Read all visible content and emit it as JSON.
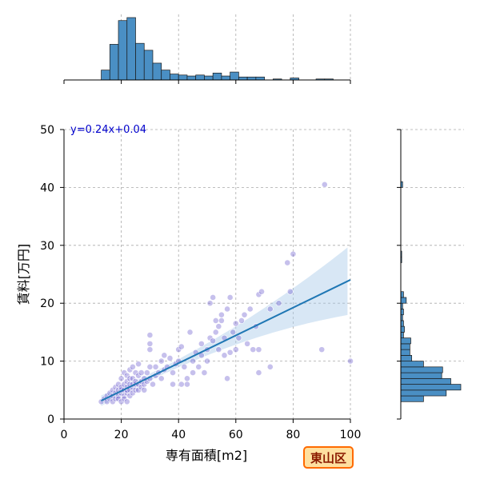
{
  "chart_data": {
    "type": "scatter",
    "xlabel": "専有面積[m2]",
    "ylabel": "賃料[万円]",
    "xlim": [
      0,
      100
    ],
    "ylim": [
      0,
      50
    ],
    "xticks": [
      0,
      20,
      40,
      60,
      80,
      100
    ],
    "yticks": [
      0,
      10,
      20,
      30,
      40,
      50
    ],
    "grid": true,
    "annotation": "y=0.24x+0.04",
    "badge": "東山区",
    "colors": {
      "points": "#6a5acd",
      "regression": "#1f77b4",
      "confidence": "#a9c9e8",
      "hist_fill": "#4a8fc4",
      "badge_fill": "#ffe0a0",
      "badge_border": "#ff6a00"
    },
    "regression": {
      "slope": 0.24,
      "intercept": 0.04,
      "x_range": [
        13,
        100
      ]
    },
    "points": [
      [
        13,
        3
      ],
      [
        14,
        3.5
      ],
      [
        15,
        4
      ],
      [
        15,
        3
      ],
      [
        16,
        4.5
      ],
      [
        16,
        3.5
      ],
      [
        17,
        4
      ],
      [
        17,
        5
      ],
      [
        17,
        3
      ],
      [
        18,
        4.5
      ],
      [
        18,
        5.5
      ],
      [
        18,
        3.5
      ],
      [
        19,
        4
      ],
      [
        19,
        5
      ],
      [
        19,
        6
      ],
      [
        19,
        3.5
      ],
      [
        20,
        4.5
      ],
      [
        20,
        5
      ],
      [
        20,
        5.5
      ],
      [
        20,
        3
      ],
      [
        20,
        7
      ],
      [
        21,
        4
      ],
      [
        21,
        5
      ],
      [
        21,
        6
      ],
      [
        21,
        8
      ],
      [
        21,
        3.5
      ],
      [
        22,
        4.5
      ],
      [
        22,
        5
      ],
      [
        22,
        5.5
      ],
      [
        22,
        6.5
      ],
      [
        22,
        7.5
      ],
      [
        22,
        3
      ],
      [
        23,
        4
      ],
      [
        23,
        5
      ],
      [
        23,
        6
      ],
      [
        23,
        7
      ],
      [
        23,
        8.5
      ],
      [
        24,
        4.5
      ],
      [
        24,
        5.5
      ],
      [
        24,
        6
      ],
      [
        24,
        7
      ],
      [
        24,
        9
      ],
      [
        25,
        5
      ],
      [
        25,
        6
      ],
      [
        25,
        6.5
      ],
      [
        25,
        8
      ],
      [
        26,
        5
      ],
      [
        26,
        6
      ],
      [
        26,
        7.5
      ],
      [
        26,
        9.5
      ],
      [
        27,
        5.5
      ],
      [
        27,
        6.5
      ],
      [
        27,
        8
      ],
      [
        28,
        6
      ],
      [
        28,
        7
      ],
      [
        28,
        5
      ],
      [
        29,
        6.5
      ],
      [
        29,
        8
      ],
      [
        30,
        7
      ],
      [
        30,
        9
      ],
      [
        30,
        13
      ],
      [
        30,
        12
      ],
      [
        30,
        14.5
      ],
      [
        31,
        6
      ],
      [
        32,
        7.5
      ],
      [
        32,
        9
      ],
      [
        33,
        8
      ],
      [
        34,
        7
      ],
      [
        34,
        10
      ],
      [
        35,
        11
      ],
      [
        35,
        8.5
      ],
      [
        36,
        9
      ],
      [
        37,
        10.5
      ],
      [
        38,
        8
      ],
      [
        38,
        6
      ],
      [
        39,
        9.5
      ],
      [
        40,
        10
      ],
      [
        40,
        12
      ],
      [
        41,
        12.5
      ],
      [
        41,
        6
      ],
      [
        42,
        9
      ],
      [
        43,
        7
      ],
      [
        43,
        6
      ],
      [
        44,
        15
      ],
      [
        45,
        10
      ],
      [
        45,
        8
      ],
      [
        46,
        11.5
      ],
      [
        47,
        9
      ],
      [
        48,
        11
      ],
      [
        48,
        13
      ],
      [
        49,
        8
      ],
      [
        50,
        10
      ],
      [
        50,
        12
      ],
      [
        51,
        14
      ],
      [
        51,
        20
      ],
      [
        52,
        21
      ],
      [
        52,
        13.5
      ],
      [
        53,
        17
      ],
      [
        53,
        15
      ],
      [
        54,
        16
      ],
      [
        54,
        12
      ],
      [
        55,
        17
      ],
      [
        55,
        18
      ],
      [
        56,
        11
      ],
      [
        56,
        14
      ],
      [
        57,
        19
      ],
      [
        57,
        7
      ],
      [
        58,
        21
      ],
      [
        58,
        11.5
      ],
      [
        59,
        15
      ],
      [
        60,
        16.5
      ],
      [
        60,
        12
      ],
      [
        61,
        14
      ],
      [
        62,
        17
      ],
      [
        63,
        18
      ],
      [
        64,
        13
      ],
      [
        65,
        19
      ],
      [
        66,
        12
      ],
      [
        67,
        16
      ],
      [
        68,
        12
      ],
      [
        68,
        8
      ],
      [
        68,
        21.5
      ],
      [
        69,
        22
      ],
      [
        72,
        19
      ],
      [
        72,
        9
      ],
      [
        75,
        20
      ],
      [
        78,
        27
      ],
      [
        79,
        22
      ],
      [
        80,
        28.5
      ],
      [
        90,
        12
      ],
      [
        91,
        40.5
      ],
      [
        100,
        10
      ]
    ],
    "x_histogram": {
      "bin_width": 3,
      "bins": [
        [
          13,
          16,
          10
        ],
        [
          16,
          19,
          36
        ],
        [
          19,
          22,
          60
        ],
        [
          22,
          25,
          63
        ],
        [
          25,
          28,
          37
        ],
        [
          28,
          31,
          30
        ],
        [
          31,
          34,
          17
        ],
        [
          34,
          37,
          10
        ],
        [
          37,
          40,
          6
        ],
        [
          40,
          43,
          5
        ],
        [
          43,
          46,
          4
        ],
        [
          46,
          49,
          5
        ],
        [
          49,
          52,
          4
        ],
        [
          52,
          55,
          7
        ],
        [
          55,
          58,
          4
        ],
        [
          58,
          61,
          8
        ],
        [
          61,
          64,
          3
        ],
        [
          64,
          67,
          3
        ],
        [
          67,
          70,
          3
        ],
        [
          73,
          76,
          1
        ],
        [
          79,
          82,
          2
        ],
        [
          88,
          91,
          1
        ],
        [
          91,
          94,
          1
        ]
      ]
    },
    "y_histogram": {
      "bin_width": 1,
      "bins": [
        [
          3,
          4,
          25
        ],
        [
          4,
          5,
          50
        ],
        [
          5,
          6,
          66
        ],
        [
          6,
          7,
          55
        ],
        [
          7,
          8,
          45
        ],
        [
          8,
          9,
          46
        ],
        [
          9,
          10,
          25
        ],
        [
          10,
          11,
          12
        ],
        [
          11,
          12,
          10
        ],
        [
          12,
          13,
          10
        ],
        [
          13,
          14,
          11
        ],
        [
          14,
          15,
          3
        ],
        [
          15,
          16,
          4
        ],
        [
          16,
          17,
          3
        ],
        [
          17,
          18,
          2
        ],
        [
          18,
          19,
          3
        ],
        [
          19,
          20,
          2
        ],
        [
          20,
          21,
          6
        ],
        [
          21,
          22,
          3
        ],
        [
          27,
          28,
          1
        ],
        [
          28,
          29,
          1
        ],
        [
          40,
          41,
          2
        ]
      ]
    }
  }
}
